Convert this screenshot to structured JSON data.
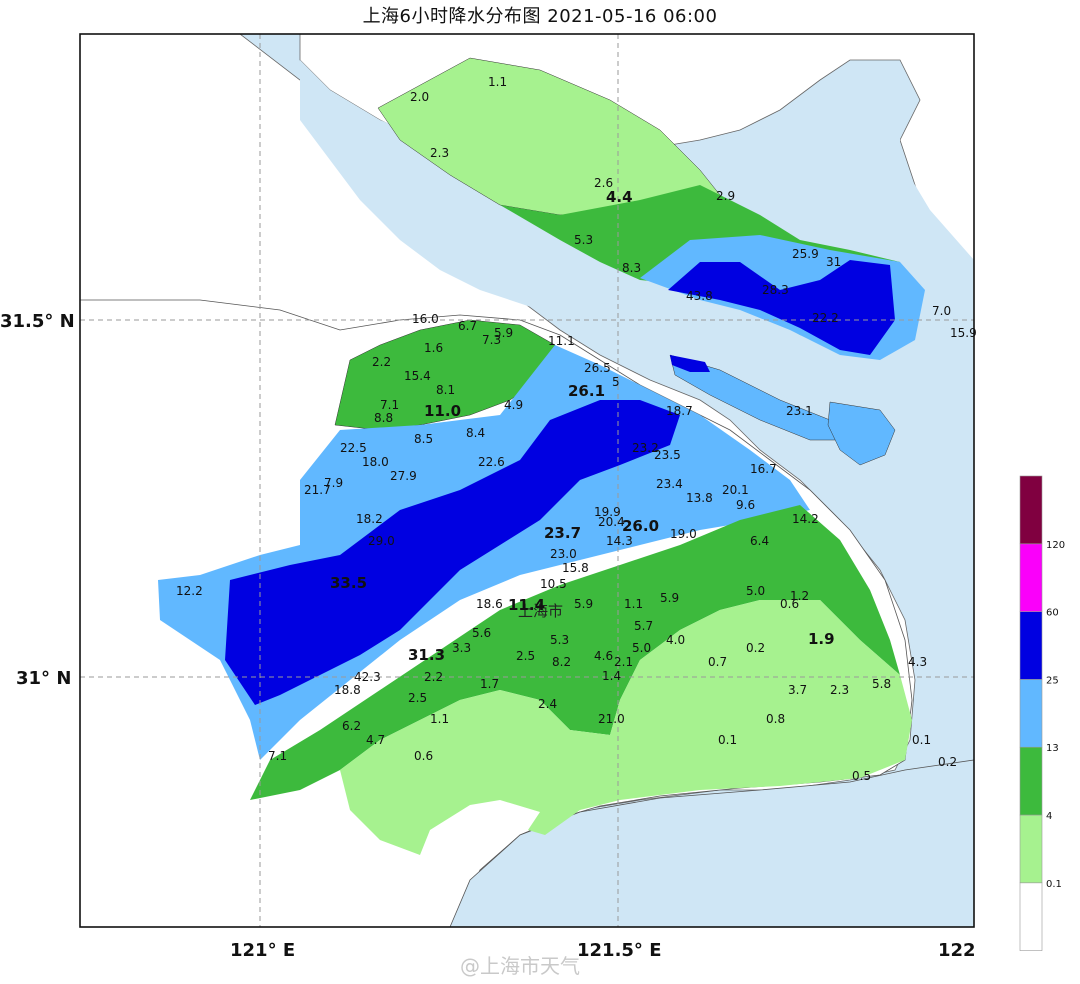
{
  "title": "上海6小时降水分布图 2021-05-16 06:00",
  "city_label": "上海市",
  "watermark": "@上海市天气",
  "axes": {
    "x_ticks": [
      "121° E",
      "121.5° E",
      "122"
    ],
    "y_ticks": [
      "31.5° N",
      "31° N"
    ]
  },
  "legend": {
    "levels": [
      "0.1",
      "4",
      "13",
      "25",
      "60",
      "120"
    ],
    "colors": [
      "#ffffff",
      "#a6f28f",
      "#3dba3d",
      "#61b8ff",
      "#0000e1",
      "#fa00fa",
      "#800040"
    ]
  },
  "colors": {
    "sea": "#cfe6f5",
    "land": "#ffffff"
  },
  "map_data": {
    "stations": [
      {
        "v": "1.1"
      },
      {
        "v": "2.0"
      },
      {
        "v": "2.3"
      },
      {
        "v": "2.6"
      },
      {
        "v": "4.4",
        "big": true
      },
      {
        "v": "2.9"
      },
      {
        "v": "5.3"
      },
      {
        "v": "8.3"
      },
      {
        "v": "25.9"
      },
      {
        "v": "31"
      },
      {
        "v": "43.8"
      },
      {
        "v": "28.3"
      },
      {
        "v": "22.2"
      },
      {
        "v": "7.0"
      },
      {
        "v": "15.9"
      },
      {
        "v": "23.1"
      },
      {
        "v": "16.0"
      },
      {
        "v": "6.7"
      },
      {
        "v": "5.9"
      },
      {
        "v": "7.3"
      },
      {
        "v": "11.1"
      },
      {
        "v": "1.6"
      },
      {
        "v": "2.2"
      },
      {
        "v": "15.4"
      },
      {
        "v": "8.1"
      },
      {
        "v": "7.1"
      },
      {
        "v": "8.8"
      },
      {
        "v": "11.0",
        "big": true
      },
      {
        "v": "4.9"
      },
      {
        "v": "26.5"
      },
      {
        "v": "26.1",
        "big": true
      },
      {
        "v": "5"
      },
      {
        "v": "18.7"
      },
      {
        "v": "23.2"
      },
      {
        "v": "22.5"
      },
      {
        "v": "8.5"
      },
      {
        "v": "8.4"
      },
      {
        "v": "18.0"
      },
      {
        "v": "23.5"
      },
      {
        "v": "22.6"
      },
      {
        "v": "27.9"
      },
      {
        "v": "21.7"
      },
      {
        "v": "7.9"
      },
      {
        "v": "16.7"
      },
      {
        "v": "23.4"
      },
      {
        "v": "20.1"
      },
      {
        "v": "13.8"
      },
      {
        "v": "9.6"
      },
      {
        "v": "14.2"
      },
      {
        "v": "18.2"
      },
      {
        "v": "19.9"
      },
      {
        "v": "26.0",
        "big": true
      },
      {
        "v": "20.4"
      },
      {
        "v": "14.3"
      },
      {
        "v": "19.0"
      },
      {
        "v": "29.0"
      },
      {
        "v": "23.7",
        "big": true
      },
      {
        "v": "23.0"
      },
      {
        "v": "6.4"
      },
      {
        "v": "12.2"
      },
      {
        "v": "33.5",
        "big": true
      },
      {
        "v": "15.8"
      },
      {
        "v": "10.5"
      },
      {
        "v": "5.9"
      },
      {
        "v": "1.1"
      },
      {
        "v": "5.9"
      },
      {
        "v": "5.0"
      },
      {
        "v": "0.6"
      },
      {
        "v": "1.2"
      },
      {
        "v": "18.6"
      },
      {
        "v": "11.4",
        "big": true
      },
      {
        "v": "5.7"
      },
      {
        "v": "5.6"
      },
      {
        "v": "5.3"
      },
      {
        "v": "4.0"
      },
      {
        "v": "1.9",
        "big": true
      },
      {
        "v": "31.3",
        "big": true
      },
      {
        "v": "3.3"
      },
      {
        "v": "2.5"
      },
      {
        "v": "8.2"
      },
      {
        "v": "4.6"
      },
      {
        "v": "5.0"
      },
      {
        "v": "0.7"
      },
      {
        "v": "0.2"
      },
      {
        "v": "2.1"
      },
      {
        "v": "4.3"
      },
      {
        "v": "42.3"
      },
      {
        "v": "2.2"
      },
      {
        "v": "1.7"
      },
      {
        "v": "1.4"
      },
      {
        "v": "18.8"
      },
      {
        "v": "3.7"
      },
      {
        "v": "2.3"
      },
      {
        "v": "5.8"
      },
      {
        "v": "2.5"
      },
      {
        "v": "2.4"
      },
      {
        "v": "1.1"
      },
      {
        "v": "21.0"
      },
      {
        "v": "0.8"
      },
      {
        "v": "6.2"
      },
      {
        "v": "4.7"
      },
      {
        "v": "0.1"
      },
      {
        "v": "0.1"
      },
      {
        "v": "7.1"
      },
      {
        "v": "0.6"
      },
      {
        "v": "0.2"
      },
      {
        "v": "0.5"
      }
    ]
  }
}
